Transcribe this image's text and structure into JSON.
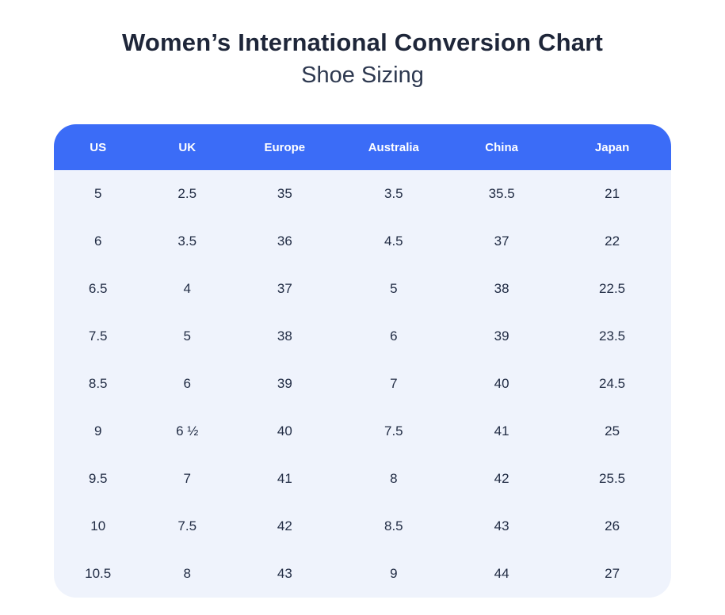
{
  "page": {
    "title": "Women’s International Conversion Chart",
    "subtitle": "Shoe Sizing"
  },
  "colors": {
    "header_bg": "#3b6cf7",
    "header_text": "#ffffff",
    "body_bg": "#eff3fc",
    "title_text": "#1e2639",
    "subtitle_text": "#2e3950",
    "cell_text": "#212c44"
  },
  "chart_data": {
    "type": "table",
    "title": "Women’s International Conversion Chart — Shoe Sizing",
    "columns": [
      "US",
      "UK",
      "Europe",
      "Australia",
      "China",
      "Japan"
    ],
    "rows": [
      [
        "5",
        "2.5",
        "35",
        "3.5",
        "35.5",
        "21"
      ],
      [
        "6",
        "3.5",
        "36",
        "4.5",
        "37",
        "22"
      ],
      [
        "6.5",
        "4",
        "37",
        "5",
        "38",
        "22.5"
      ],
      [
        "7.5",
        "5",
        "38",
        "6",
        "39",
        "23.5"
      ],
      [
        "8.5",
        "6",
        "39",
        "7",
        "40",
        "24.5"
      ],
      [
        "9",
        "6 ½",
        "40",
        "7.5",
        "41",
        "25"
      ],
      [
        "9.5",
        "7",
        "41",
        "8",
        "42",
        "25.5"
      ],
      [
        "10",
        "7.5",
        "42",
        "8.5",
        "43",
        "26"
      ],
      [
        "10.5",
        "8",
        "43",
        "9",
        "44",
        "27"
      ]
    ],
    "layout": {
      "grid": false,
      "header_position": "top"
    }
  }
}
